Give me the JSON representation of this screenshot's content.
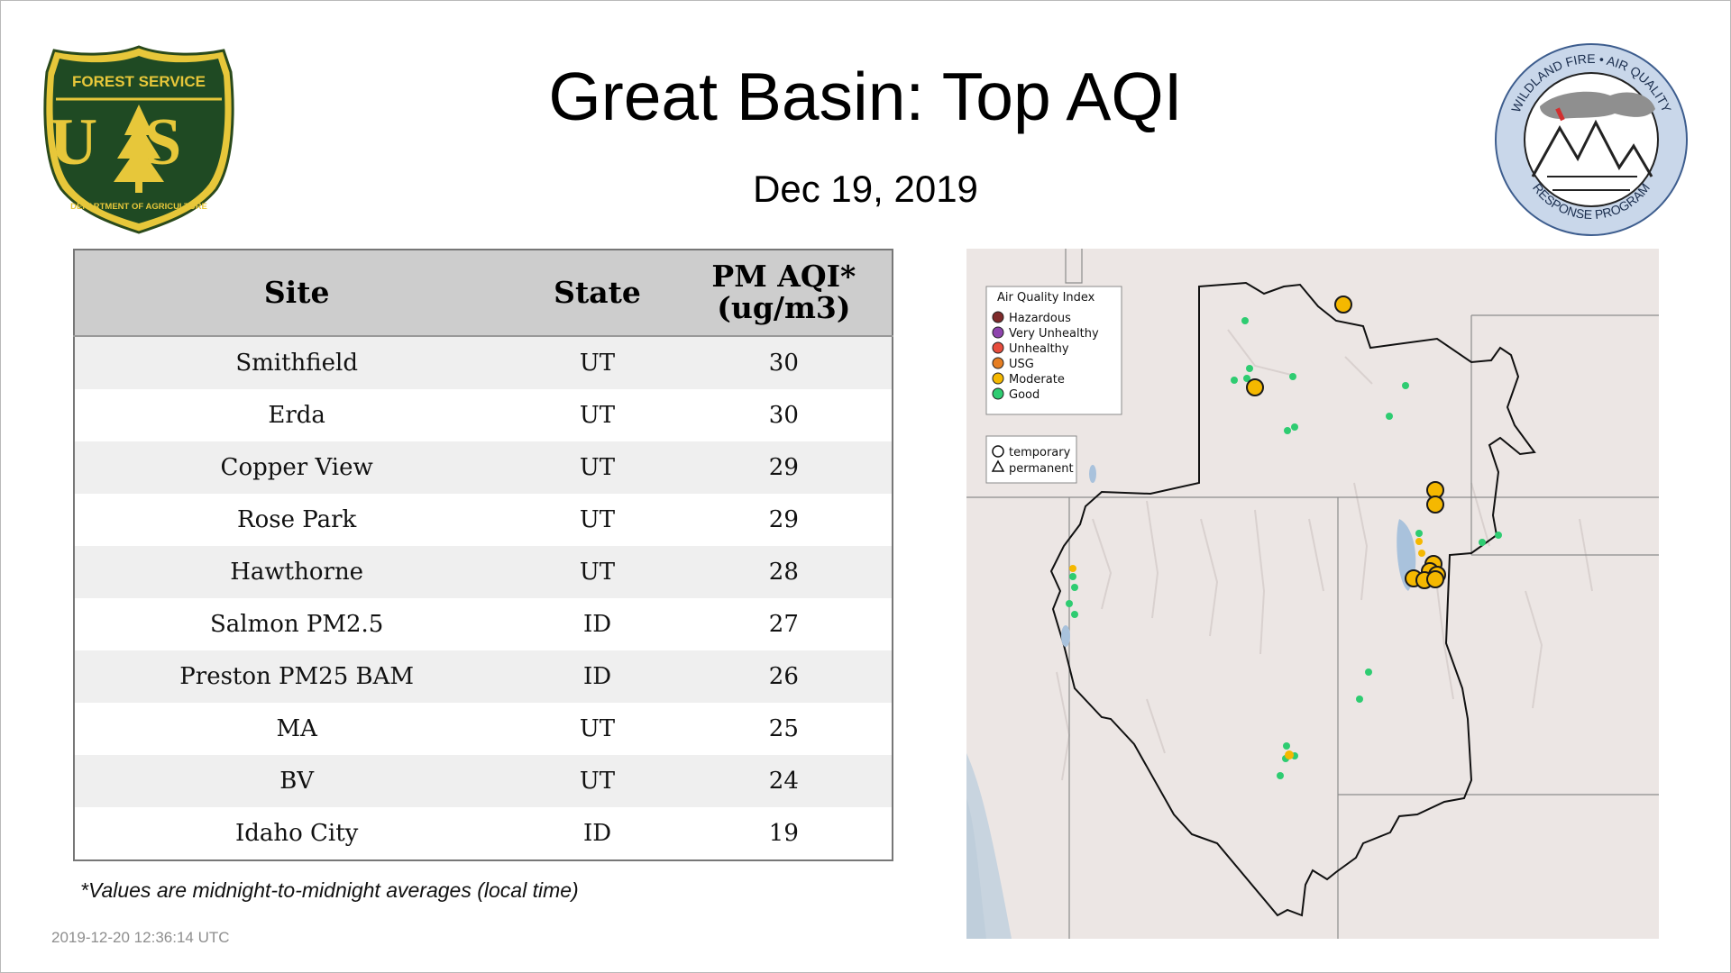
{
  "header": {
    "title": "Great Basin: Top AQI",
    "date": "Dec 19, 2019"
  },
  "logos": {
    "left": {
      "icon": "forest-service-shield-icon",
      "top_text": "FOREST SERVICE",
      "letters": "US",
      "bottom_text": "DEPARTMENT OF AGRICULTURE"
    },
    "right": {
      "icon": "wildland-fire-air-quality-icon",
      "ring_text_top": "WILDLAND FIRE • AIR QUALITY",
      "ring_text_bottom": "RESPONSE PROGRAM"
    }
  },
  "table": {
    "headers": {
      "site": "Site",
      "state": "State",
      "pm_line1": "PM AQI*",
      "pm_line2": "(ug/m3)"
    },
    "rows": [
      {
        "site": "Smithfield",
        "state": "UT",
        "pm": "30"
      },
      {
        "site": "Erda",
        "state": "UT",
        "pm": "30"
      },
      {
        "site": "Copper View",
        "state": "UT",
        "pm": "29"
      },
      {
        "site": "Rose Park",
        "state": "UT",
        "pm": "29"
      },
      {
        "site": "Hawthorne",
        "state": "UT",
        "pm": "28"
      },
      {
        "site": "Salmon PM2.5",
        "state": "ID",
        "pm": "27"
      },
      {
        "site": "Preston PM25 BAM",
        "state": "ID",
        "pm": "26"
      },
      {
        "site": "MA",
        "state": "UT",
        "pm": "25"
      },
      {
        "site": "BV",
        "state": "UT",
        "pm": "24"
      },
      {
        "site": "Idaho City",
        "state": "ID",
        "pm": "19"
      }
    ]
  },
  "footnote": "*Values are midnight-to-midnight averages (local time)",
  "timestamp": "2019-12-20 12:36:14 UTC",
  "map": {
    "legend_title": "Air Quality Index",
    "legend_items": [
      {
        "label": "Hazardous",
        "color": "#7e2a2a"
      },
      {
        "label": "Very Unhealthy",
        "color": "#8e44ad"
      },
      {
        "label": "Unhealthy",
        "color": "#e74c3c"
      },
      {
        "label": "USG",
        "color": "#e67e22"
      },
      {
        "label": "Moderate",
        "color": "#f5b800"
      },
      {
        "label": "Good",
        "color": "#2ecc71"
      }
    ],
    "type_legend": [
      {
        "label": "temporary",
        "icon": "circle-icon"
      },
      {
        "label": "permanent",
        "icon": "triangle-icon"
      }
    ]
  }
}
